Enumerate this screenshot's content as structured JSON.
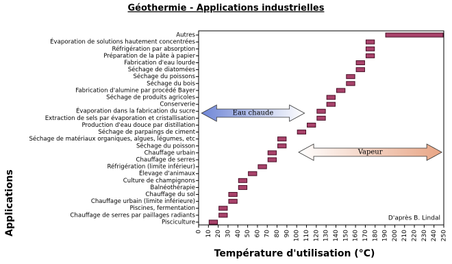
{
  "chart_data": {
    "type": "range-bar",
    "title": "Géothermie - Applications industrielles",
    "xlabel": "Température d'utilisation (°C)",
    "ylabel": "Applications",
    "credit": "D'après B. Lindal",
    "categories": [
      "Autres",
      "Évaporation de solutions hautement concentrées",
      "Réfrigération par absorption",
      "Préparation de la pâte à papier",
      "Fabrication d'eau lourde",
      "Séchage de diatomées",
      "Séchage du poissons",
      "Séchage du bois",
      "Fabrication d'alumine par procédé Bayer",
      "Séchage de produits agricoles",
      "Conserverie",
      "Évaporation dans la fabrication du sucre",
      "Extraction de sels par évaporation et cristallisation",
      "Production d'eau douce par distillation",
      "Séchage de parpaings de ciment",
      "Séchage de matériaux organiques, algues, légumes, etc",
      "Séchage du poisson",
      "Chauffage urbain",
      "Chauffage de serres",
      "Réfrigération (limite inférieur)",
      "Élevage d'animaux",
      "Culture de champignons",
      "Balnéothérapie",
      "Chauffage du sol",
      "Chauffage urbain (limite inférieure)",
      "Piscines, fermentation",
      "Chauffage de serres par paillages radiants",
      "Pisciculture"
    ],
    "start": [
      190,
      170,
      170,
      170,
      160,
      160,
      150,
      150,
      140,
      130,
      130,
      120,
      120,
      110,
      100,
      80,
      80,
      70,
      70,
      60,
      50,
      40,
      40,
      30,
      30,
      20,
      20,
      10
    ],
    "end": [
      250,
      180,
      180,
      180,
      170,
      170,
      160,
      160,
      150,
      140,
      140,
      130,
      130,
      120,
      110,
      90,
      90,
      80,
      80,
      70,
      60,
      50,
      50,
      40,
      40,
      30,
      30,
      20
    ],
    "color": "#a8426a",
    "xlim": [
      0,
      250
    ],
    "xticks": [
      0,
      10,
      20,
      30,
      40,
      50,
      60,
      70,
      80,
      90,
      100,
      110,
      120,
      130,
      140,
      150,
      160,
      170,
      180,
      190,
      200,
      210,
      220,
      230,
      240,
      250
    ],
    "annotations": [
      {
        "text": "Eau chaude",
        "from": 3,
        "to": 108,
        "color": "#6f86d6"
      },
      {
        "text": "Vapeur",
        "from": 102,
        "to": 248,
        "color": "#e8a585"
      }
    ]
  }
}
